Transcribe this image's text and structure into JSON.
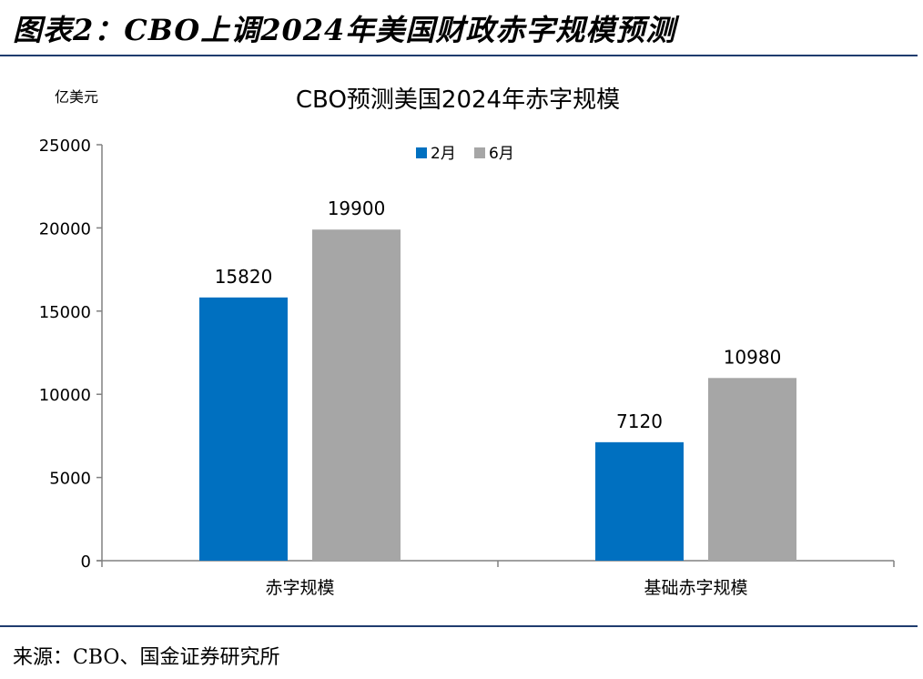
{
  "header": {
    "title": "图表2：CBO上调2024年美国财政赤字规模预测"
  },
  "footer": {
    "source": "来源：CBO、国金证券研究所"
  },
  "colors": {
    "feb": "#0070c0",
    "jun": "#a6a6a6",
    "rule": "#1f3c6e"
  },
  "chart_data": {
    "type": "bar",
    "title": "CBO预测美国2024年赤字规模",
    "ylabel": "亿美元",
    "xlabel": "",
    "categories": [
      "赤字规模",
      "基础赤字规模"
    ],
    "series": [
      {
        "name": "2月",
        "values": [
          15820,
          7120
        ]
      },
      {
        "name": "6月",
        "values": [
          19900,
          10980
        ]
      }
    ],
    "ylim": [
      0,
      25000
    ],
    "yticks": [
      0,
      5000,
      10000,
      15000,
      20000,
      25000
    ],
    "grid": false,
    "legend": "top-center"
  }
}
